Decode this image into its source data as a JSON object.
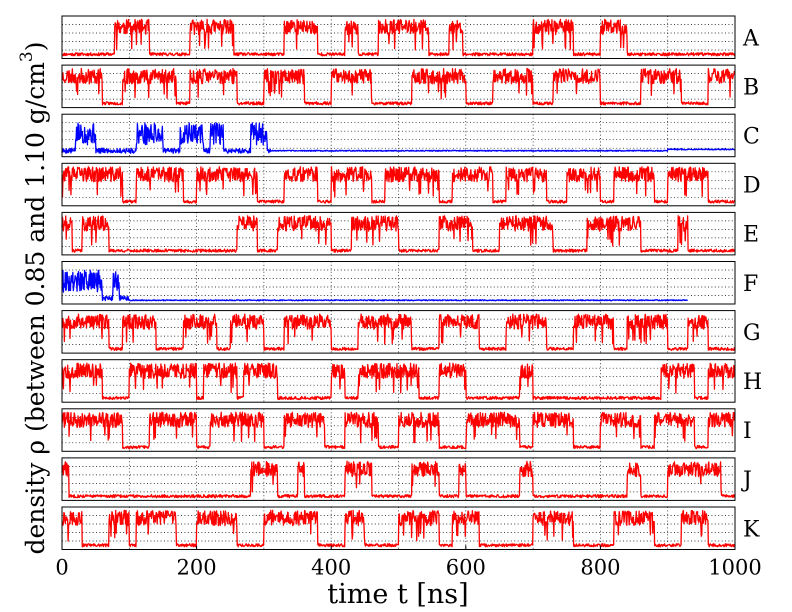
{
  "chart_data": {
    "type": "line",
    "layout": "stacked-panels",
    "xlabel": "time t [ns]",
    "ylabel": "density ρ (between 0.85 and 1.10 g/cm3)",
    "ylabel_parts": {
      "prefix": "density ",
      "symbol": "ρ",
      "suffix": " (between 0.85 and 1.10 g/cm",
      "exponent": "3",
      "close": ")"
    },
    "xlim": [
      0,
      1000
    ],
    "ylim": [
      0.85,
      1.1
    ],
    "xticks": [
      0,
      200,
      400,
      600,
      800,
      1000
    ],
    "x_gridlines": [
      100,
      200,
      300,
      400,
      500,
      600,
      700,
      800,
      900
    ],
    "y_gridlines": [
      0.9,
      0.95,
      1.0,
      1.05
    ],
    "grid": true,
    "panels": [
      {
        "label": "A",
        "color": "#ff0000",
        "kind": "switching",
        "seed": 11,
        "high_prob": 0.42,
        "end": 1000,
        "high_intervals": [
          [
            78,
            130
          ],
          [
            190,
            255
          ],
          [
            330,
            380
          ],
          [
            420,
            440
          ],
          [
            470,
            545
          ],
          [
            575,
            595
          ],
          [
            700,
            760
          ],
          [
            800,
            840
          ]
        ]
      },
      {
        "label": "B",
        "color": "#ff0000",
        "kind": "switching",
        "seed": 23,
        "high_prob": 0.58,
        "end": 1000,
        "high_intervals": [
          [
            0,
            60
          ],
          [
            90,
            170
          ],
          [
            190,
            260
          ],
          [
            300,
            360
          ],
          [
            400,
            460
          ],
          [
            520,
            600
          ],
          [
            640,
            700
          ],
          [
            730,
            800
          ],
          [
            860,
            920
          ],
          [
            960,
            1000
          ]
        ]
      },
      {
        "label": "C",
        "color": "#0000ff",
        "kind": "freezing",
        "seed": 5,
        "freeze_at": 310,
        "end": 1000,
        "step_at": 900,
        "bursts": [
          [
            20,
            50
          ],
          [
            110,
            150
          ],
          [
            175,
            210
          ],
          [
            220,
            240
          ],
          [
            280,
            305
          ]
        ],
        "late_level": 0.885,
        "final_level": 0.893
      },
      {
        "label": "D",
        "color": "#ff0000",
        "kind": "switching",
        "seed": 37,
        "high_prob": 0.62,
        "end": 1000,
        "high_intervals": [
          [
            0,
            90
          ],
          [
            110,
            180
          ],
          [
            200,
            290
          ],
          [
            330,
            380
          ],
          [
            400,
            460
          ],
          [
            480,
            560
          ],
          [
            580,
            640
          ],
          [
            660,
            720
          ],
          [
            750,
            800
          ],
          [
            820,
            880
          ],
          [
            900,
            960
          ]
        ]
      },
      {
        "label": "E",
        "color": "#ff0000",
        "kind": "switching",
        "seed": 41,
        "high_prob": 0.45,
        "end": 1000,
        "high_intervals": [
          [
            0,
            15
          ],
          [
            30,
            70
          ],
          [
            260,
            290
          ],
          [
            320,
            400
          ],
          [
            430,
            500
          ],
          [
            560,
            610
          ],
          [
            650,
            730
          ],
          [
            780,
            860
          ],
          [
            915,
            930
          ]
        ]
      },
      {
        "label": "F",
        "color": "#0000ff",
        "kind": "freezing",
        "seed": 9,
        "freeze_at": 100,
        "end": 930,
        "bursts": [
          [
            0,
            30
          ],
          [
            30,
            60
          ],
          [
            75,
            85
          ]
        ],
        "late_level": 0.872,
        "final_level": 0.872
      },
      {
        "label": "G",
        "color": "#ff0000",
        "kind": "switching",
        "seed": 53,
        "high_prob": 0.55,
        "end": 1000,
        "high_intervals": [
          [
            0,
            70
          ],
          [
            90,
            140
          ],
          [
            180,
            230
          ],
          [
            250,
            300
          ],
          [
            330,
            400
          ],
          [
            440,
            520
          ],
          [
            560,
            620
          ],
          [
            660,
            720
          ],
          [
            760,
            820
          ],
          [
            840,
            900
          ],
          [
            930,
            960
          ]
        ]
      },
      {
        "label": "H",
        "color": "#ff0000",
        "kind": "switching",
        "seed": 67,
        "high_prob": 0.5,
        "end": 1000,
        "high_intervals": [
          [
            0,
            60
          ],
          [
            100,
            200
          ],
          [
            210,
            260
          ],
          [
            270,
            320
          ],
          [
            400,
            420
          ],
          [
            440,
            530
          ],
          [
            560,
            600
          ],
          [
            680,
            700
          ],
          [
            890,
            940
          ],
          [
            960,
            1000
          ]
        ]
      },
      {
        "label": "I",
        "color": "#ff0000",
        "kind": "switching",
        "seed": 71,
        "high_prob": 0.52,
        "end": 1000,
        "high_intervals": [
          [
            0,
            90
          ],
          [
            130,
            200
          ],
          [
            220,
            300
          ],
          [
            330,
            390
          ],
          [
            420,
            470
          ],
          [
            500,
            560
          ],
          [
            600,
            680
          ],
          [
            700,
            760
          ],
          [
            800,
            860
          ],
          [
            880,
            940
          ],
          [
            960,
            1000
          ]
        ]
      },
      {
        "label": "J",
        "color": "#ff0000",
        "kind": "switching",
        "seed": 83,
        "high_prob": 0.35,
        "end": 1000,
        "high_intervals": [
          [
            0,
            10
          ],
          [
            280,
            320
          ],
          [
            350,
            360
          ],
          [
            420,
            460
          ],
          [
            520,
            560
          ],
          [
            590,
            600
          ],
          [
            680,
            700
          ],
          [
            840,
            860
          ],
          [
            900,
            980
          ]
        ]
      },
      {
        "label": "K",
        "color": "#ff0000",
        "kind": "switching",
        "seed": 97,
        "high_prob": 0.55,
        "end": 1000,
        "high_intervals": [
          [
            0,
            30
          ],
          [
            70,
            100
          ],
          [
            110,
            170
          ],
          [
            200,
            260
          ],
          [
            300,
            380
          ],
          [
            420,
            450
          ],
          [
            500,
            560
          ],
          [
            580,
            620
          ],
          [
            700,
            760
          ],
          [
            820,
            880
          ],
          [
            920,
            960
          ]
        ]
      }
    ]
  }
}
